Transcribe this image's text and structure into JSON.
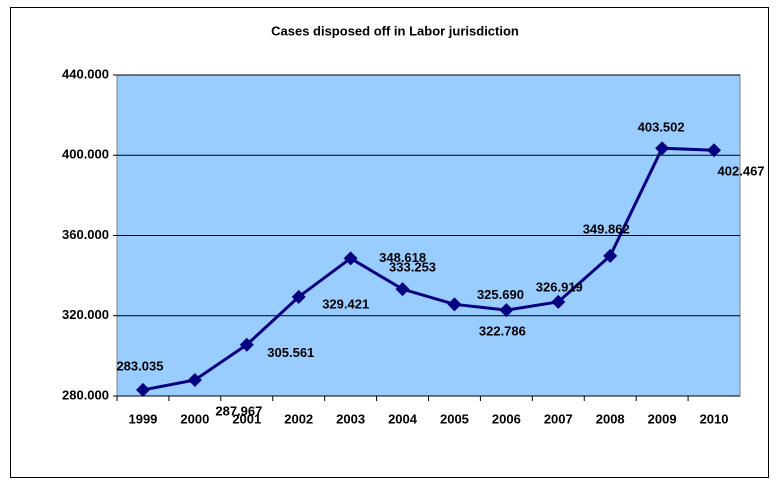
{
  "chart_data": {
    "type": "line",
    "title": "Cases disposed off in Labor jurisdiction",
    "categories": [
      "1999",
      "2000",
      "2001",
      "2002",
      "2003",
      "2004",
      "2005",
      "2006",
      "2007",
      "2008",
      "2009",
      "2010"
    ],
    "series": [
      {
        "name": "Cases disposed off",
        "color": "#000080",
        "values": [
          283035,
          287967,
          305561,
          329421,
          348618,
          333253,
          325690,
          322786,
          326919,
          349862,
          403502,
          402467
        ],
        "value_labels": [
          "283.035",
          "287.967",
          "305.561",
          "329.421",
          "348.618",
          "333.253",
          "325.690",
          "322.786",
          "326.919",
          "349.862",
          "403.502",
          "402.467"
        ]
      }
    ],
    "ylim": [
      280000,
      440000
    ],
    "yticks": [
      {
        "value": 280000,
        "label": "280.000"
      },
      {
        "value": 320000,
        "label": "320.000"
      },
      {
        "value": 360000,
        "label": "360.000"
      },
      {
        "value": 400000,
        "label": "400.000"
      },
      {
        "value": 440000,
        "label": "440.000"
      }
    ],
    "grid": true,
    "plot_background": "#99ccff"
  }
}
